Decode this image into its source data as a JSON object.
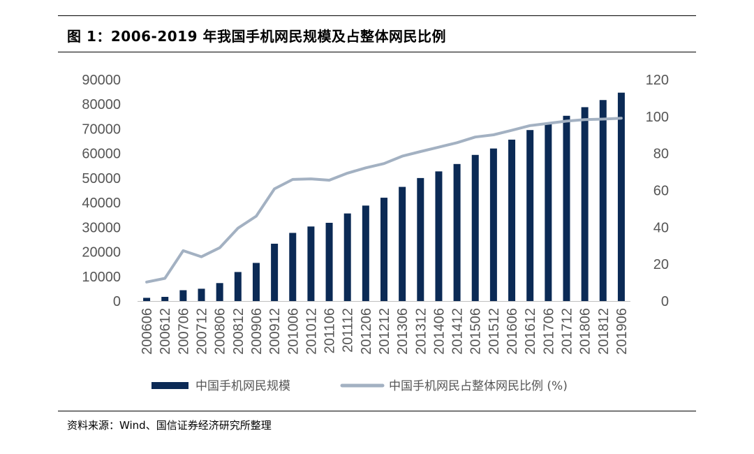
{
  "title": "图 1：2006-2019 年我国手机网民规模及占整体网民比例",
  "source": "资料来源：Wind、国信证券经济研究所整理",
  "colors": {
    "bar": "#0b2a55",
    "line": "#a3b1c2",
    "axis_text": "#555555"
  },
  "chart_data": {
    "type": "bar+line",
    "categories": [
      "200606",
      "200612",
      "200706",
      "200712",
      "200806",
      "200812",
      "200906",
      "200912",
      "201006",
      "201012",
      "201106",
      "201112",
      "201206",
      "201212",
      "201306",
      "201312",
      "201406",
      "201412",
      "201506",
      "201512",
      "201606",
      "201612",
      "201706",
      "201712",
      "201806",
      "201812",
      "201906"
    ],
    "series": [
      {
        "name": "中国手机网民规模",
        "type": "bar",
        "axis": "left",
        "values": [
          1300,
          1700,
          4400,
          5000,
          7300,
          11800,
          15500,
          23300,
          27700,
          30300,
          31800,
          35600,
          38800,
          42000,
          46400,
          50000,
          52700,
          55700,
          59400,
          62000,
          65600,
          69500,
          72400,
          75300,
          78800,
          81700,
          84700
        ]
      },
      {
        "name": "中国手机网民占整体网民比例 (%)",
        "type": "line",
        "axis": "right",
        "values": [
          10.3,
          12.3,
          27.3,
          24.0,
          28.9,
          39.5,
          46.0,
          60.8,
          65.9,
          66.2,
          65.5,
          69.3,
          72.2,
          74.5,
          78.5,
          81.0,
          83.4,
          85.8,
          88.9,
          90.1,
          92.5,
          95.1,
          96.3,
          97.5,
          98.3,
          98.6,
          99.1
        ]
      }
    ],
    "y_left": {
      "min": 0,
      "max": 90000,
      "ticks": [
        "0",
        "10000",
        "20000",
        "30000",
        "40000",
        "50000",
        "60000",
        "70000",
        "80000",
        "90000"
      ]
    },
    "y_right": {
      "min": 0,
      "max": 120,
      "ticks": [
        "0",
        "20",
        "40",
        "60",
        "80",
        "100",
        "120"
      ]
    },
    "legend": "bottom",
    "grid": false
  }
}
